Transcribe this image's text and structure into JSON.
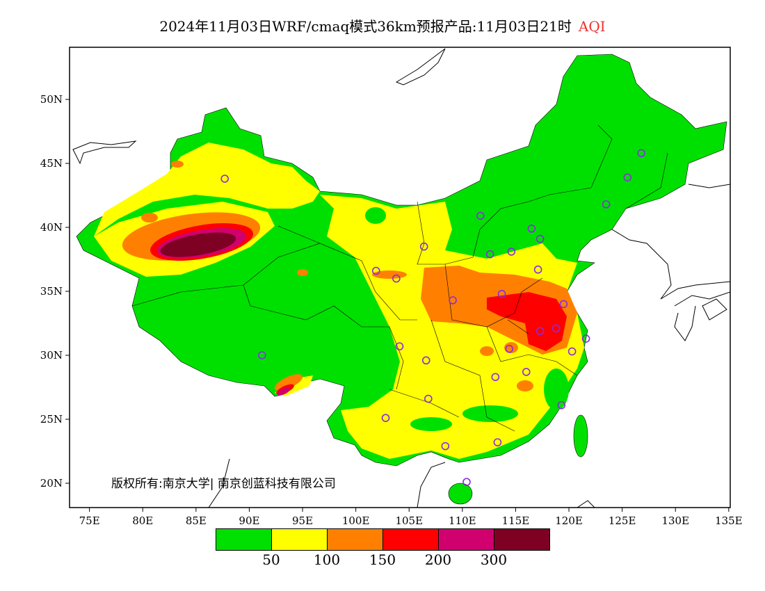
{
  "title": {
    "main": "2024年11月03日WRF/cmaq模式36km预报产品:11月03日21时",
    "variable": "AQI"
  },
  "axes": {
    "lon_ticks": [
      "75E",
      "80E",
      "85E",
      "90E",
      "95E",
      "100E",
      "105E",
      "110E",
      "115E",
      "120E",
      "125E",
      "130E",
      "135E"
    ],
    "lat_ticks": [
      "50N",
      "45N",
      "40N",
      "35N",
      "30N",
      "25N",
      "20N"
    ],
    "lon_range": [
      73,
      135
    ],
    "lat_range": [
      18,
      54
    ]
  },
  "legend": {
    "colors": [
      "#00e000",
      "#ffff00",
      "#ff8000",
      "#ff0000",
      "#d0006e",
      "#7e0023"
    ],
    "labels": [
      "50",
      "100",
      "150",
      "200",
      "300"
    ]
  },
  "copyright": "版权所有:南京大学| 南京创蓝科技有限公司",
  "stations": [
    [
      87.7,
      43.8
    ],
    [
      91.2,
      30.0
    ],
    [
      111.7,
      40.9
    ],
    [
      116.5,
      39.9
    ],
    [
      117.3,
      39.1
    ],
    [
      114.6,
      38.1
    ],
    [
      112.6,
      37.9
    ],
    [
      106.4,
      38.5
    ],
    [
      101.9,
      36.6
    ],
    [
      103.8,
      36.0
    ],
    [
      109.1,
      34.3
    ],
    [
      113.7,
      34.8
    ],
    [
      119.5,
      34.0
    ],
    [
      117.3,
      31.9
    ],
    [
      118.8,
      32.1
    ],
    [
      114.4,
      30.5
    ],
    [
      121.6,
      31.3
    ],
    [
      120.3,
      30.3
    ],
    [
      104.1,
      30.7
    ],
    [
      106.6,
      29.6
    ],
    [
      113.1,
      28.3
    ],
    [
      116.0,
      28.7
    ],
    [
      106.8,
      26.6
    ],
    [
      102.8,
      25.1
    ],
    [
      108.4,
      22.9
    ],
    [
      113.3,
      23.2
    ],
    [
      119.3,
      26.1
    ],
    [
      110.4,
      20.1
    ],
    [
      117.1,
      36.7
    ],
    [
      123.5,
      41.8
    ],
    [
      125.5,
      43.9
    ],
    [
      126.8,
      45.8
    ]
  ]
}
